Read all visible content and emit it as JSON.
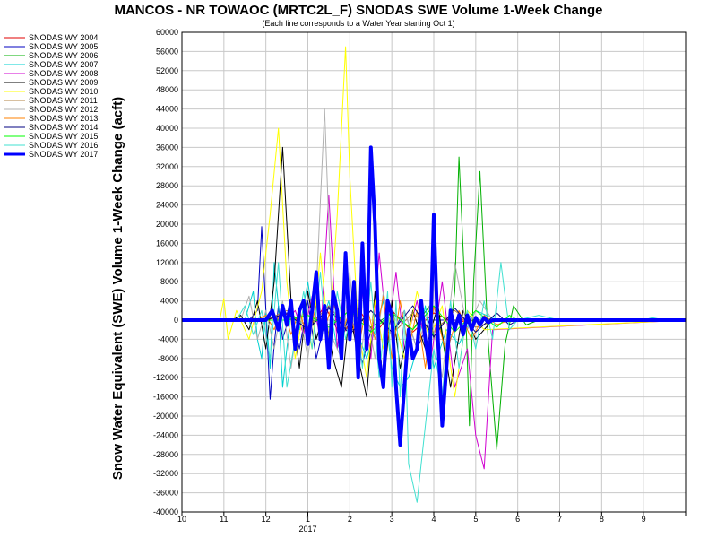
{
  "chart_data": {
    "type": "line",
    "title": "MANCOS - NR TOWAOC (MRTC2L_F) SNODAS SWE Volume 1-Week Change",
    "subtitle": "(Each line corresponds to a Water Year starting Oct 1)",
    "ylabel": "Snow Water Equivalent (SWE) Volume 1-Week Change (acft)",
    "xlabel": "",
    "year_label": "2017",
    "ylim": [
      -40000,
      60000
    ],
    "yticks": [
      60000,
      56000,
      52000,
      48000,
      44000,
      40000,
      36000,
      32000,
      28000,
      24000,
      20000,
      16000,
      12000,
      8000,
      4000,
      0,
      -4000,
      -8000,
      -12000,
      -16000,
      -20000,
      -24000,
      -28000,
      -32000,
      -36000,
      -40000
    ],
    "ytick_labels": [
      "60000",
      "56000",
      "52000",
      "48000",
      "44000",
      "40000",
      "36000",
      "32000",
      "28000",
      "24000",
      "20000",
      "16000",
      "12000",
      "8000",
      "4000",
      "0",
      "-4000",
      "-8000",
      "-12000",
      "-16000",
      "-20000",
      "-24000",
      "-28000",
      "-32000",
      "-36000",
      "-40000"
    ],
    "xlim": [
      0,
      12
    ],
    "xticks": [
      0,
      1,
      2,
      3,
      4,
      5,
      6,
      7,
      8,
      9,
      10,
      11,
      12
    ],
    "xtick_labels": [
      "10",
      "11",
      "12",
      "1",
      "2",
      "3",
      "4",
      "5",
      "6",
      "7",
      "8",
      "9",
      ""
    ],
    "grid": true,
    "legend_position": "left",
    "series": [
      {
        "name": "SNODAS WY 2004",
        "color": "#e00000",
        "width": 1,
        "x": [
          0,
          2.0,
          2.6,
          3.0,
          3.4,
          3.8,
          4.2,
          4.6,
          5.0,
          5.5,
          6.0,
          6.5,
          7.0,
          12
        ],
        "y": [
          0,
          0,
          1500,
          -2500,
          3000,
          -3500,
          2500,
          -3000,
          2000,
          -2500,
          1500,
          -500,
          0,
          0
        ]
      },
      {
        "name": "SNODAS WY 2005",
        "color": "#0000c0",
        "width": 1,
        "x": [
          0,
          1.6,
          1.8,
          1.9,
          2.0,
          2.1,
          2.2,
          2.3,
          2.4,
          2.6,
          2.8,
          3.0,
          3.2,
          3.5,
          3.8,
          4.0,
          4.3,
          4.6,
          5.0,
          5.3,
          5.6,
          5.9,
          6.2,
          12
        ],
        "y": [
          0,
          0,
          2000,
          19500,
          2000,
          -16500,
          -5000,
          3000,
          -4000,
          2000,
          -6000,
          4000,
          -8000,
          3000,
          -5000,
          2000,
          -9000,
          1000,
          -3000,
          2000,
          -6000,
          0,
          0,
          0
        ]
      },
      {
        "name": "SNODAS WY 2006",
        "color": "#00b000",
        "width": 1,
        "x": [
          0,
          2.5,
          3.0,
          3.5,
          4.0,
          4.5,
          5.0,
          5.5,
          5.9,
          6.0,
          6.1,
          6.3,
          6.5,
          6.6,
          6.75,
          6.85,
          6.95,
          7.1,
          7.3,
          7.5,
          7.7,
          7.9,
          8.2,
          8.5,
          12
        ],
        "y": [
          0,
          0,
          1000,
          -1000,
          2000,
          -1500,
          1500,
          -2000,
          3000,
          -4000,
          2000,
          -9000,
          6000,
          34000,
          5000,
          -22000,
          8000,
          31000,
          -5000,
          -27000,
          -5000,
          3000,
          -1000,
          0,
          0
        ]
      },
      {
        "name": "SNODAS WY 2007",
        "color": "#00d0d0",
        "width": 1,
        "x": [
          0,
          1.5,
          1.7,
          1.8,
          1.9,
          2.0,
          2.1,
          2.2,
          2.3,
          2.4,
          2.6,
          2.8,
          3.0,
          3.2,
          3.5,
          3.7,
          4.0,
          4.4,
          4.8,
          5.0,
          5.2,
          5.4,
          5.6,
          5.8,
          6.0,
          6.3,
          6.6,
          7.0,
          7.5,
          12
        ],
        "y": [
          0,
          0,
          6000,
          -4000,
          -8000,
          2000,
          -10000,
          12000,
          3000,
          -14000,
          2000,
          -2000,
          8000,
          -4000,
          4000,
          -6000,
          2000,
          -8000,
          4000,
          -10000,
          -14000,
          -12000,
          -6000,
          3000,
          -10000,
          -2000,
          -5000,
          2000,
          0,
          0
        ]
      },
      {
        "name": "SNODAS WY 2008",
        "color": "#d000d0",
        "width": 1,
        "x": [
          0,
          2.5,
          2.7,
          2.9,
          3.1,
          3.3,
          3.5,
          3.7,
          3.9,
          4.1,
          4.3,
          4.5,
          4.7,
          4.9,
          5.1,
          5.3,
          5.6,
          5.9,
          6.2,
          6.5,
          6.8,
          7.0,
          7.2,
          7.4,
          12
        ],
        "y": [
          0,
          0,
          2000,
          -3000,
          5000,
          -4000,
          26000,
          -6000,
          10000,
          -3000,
          6000,
          -8000,
          14000,
          -4000,
          10000,
          -6000,
          4000,
          -10000,
          8000,
          -14000,
          -6000,
          -24000,
          -31000,
          -2000,
          0
        ]
      },
      {
        "name": "SNODAS WY 2009",
        "color": "#000000",
        "width": 1,
        "x": [
          0,
          1.2,
          1.4,
          1.6,
          1.8,
          2.0,
          2.2,
          2.4,
          2.6,
          2.8,
          3.0,
          3.2,
          3.4,
          3.6,
          3.8,
          4.0,
          4.2,
          4.4,
          4.6,
          4.8,
          5.0,
          5.2,
          5.5,
          5.8,
          6.1,
          6.4,
          6.7,
          7.0,
          7.4,
          12
        ],
        "y": [
          0,
          0,
          1000,
          -2000,
          4000,
          -6000,
          8000,
          36000,
          4000,
          -10000,
          6000,
          -4000,
          2000,
          -8000,
          -14000,
          2000,
          -8000,
          -16000,
          6000,
          -14000,
          4000,
          -10000,
          2000,
          -6000,
          3000,
          -14000,
          2000,
          -4000,
          0,
          0
        ]
      },
      {
        "name": "SNODAS WY 2010",
        "color": "#ffff00",
        "width": 1,
        "x": [
          0,
          0.9,
          1.0,
          1.1,
          1.3,
          1.6,
          1.9,
          2.1,
          2.3,
          2.5,
          2.7,
          2.9,
          3.1,
          3.3,
          3.5,
          3.7,
          3.9,
          4.0,
          4.2,
          4.4,
          4.6,
          4.8,
          5.0,
          5.3,
          5.6,
          5.9,
          6.2,
          6.5,
          6.8,
          7.2,
          12
        ],
        "y": [
          0,
          0,
          4500,
          -4000,
          2000,
          -4000,
          6000,
          22000,
          40000,
          8000,
          -8000,
          2000,
          -6000,
          14000,
          -4000,
          22000,
          57000,
          30000,
          -2000,
          -12000,
          4000,
          -6000,
          2000,
          -8000,
          6000,
          -4000,
          3000,
          -16000,
          2000,
          -2000,
          0
        ]
      },
      {
        "name": "SNODAS WY 2011",
        "color": "#b08040",
        "width": 1,
        "x": [
          0,
          2.0,
          2.5,
          3.0,
          3.5,
          4.0,
          4.5,
          5.0,
          5.5,
          6.0,
          6.5,
          7.0,
          7.5,
          12
        ],
        "y": [
          0,
          0,
          2000,
          -1500,
          3000,
          -2500,
          2000,
          -3000,
          1500,
          -2500,
          2000,
          -1500,
          0,
          0
        ]
      },
      {
        "name": "SNODAS WY 2012",
        "color": "#b0b0b0",
        "width": 1,
        "x": [
          0,
          1.4,
          1.6,
          1.8,
          2.0,
          2.2,
          2.4,
          2.6,
          2.8,
          3.0,
          3.2,
          3.4,
          3.6,
          3.8,
          4.0,
          4.2,
          4.4,
          4.6,
          4.8,
          5.0,
          5.3,
          5.6,
          5.9,
          6.2,
          6.5,
          6.8,
          7.1,
          7.4,
          12
        ],
        "y": [
          0,
          0,
          5000,
          -4000,
          2000,
          -6000,
          4000,
          -10000,
          2000,
          -8000,
          6000,
          44000,
          -4000,
          -8000,
          10000,
          -12000,
          2000,
          -8000,
          6000,
          -4000,
          2000,
          -6000,
          3000,
          -12000,
          12000,
          -2000,
          4000,
          0,
          0
        ]
      },
      {
        "name": "SNODAS WY 2013",
        "color": "#ff8000",
        "width": 1,
        "x": [
          0,
          1.8,
          2.0,
          2.2,
          2.4,
          2.6,
          2.8,
          3.0,
          3.2,
          3.4,
          3.6,
          3.8,
          4.0,
          4.2,
          4.4,
          4.6,
          4.8,
          5.0,
          5.2,
          5.4,
          5.6,
          5.8,
          6.0,
          6.3,
          6.6,
          6.9,
          7.2,
          7.5,
          7.8,
          12
        ],
        "y": [
          0,
          0,
          1000,
          -2000,
          3000,
          -3000,
          2000,
          -4000,
          3000,
          -2000,
          4000,
          -3000,
          2000,
          -6000,
          3000,
          -4000,
          5000,
          -8000,
          4000,
          -6000,
          2000,
          -10000,
          3000,
          -7000,
          2000,
          -4000,
          1000,
          -1000,
          0,
          0
        ]
      },
      {
        "name": "SNODAS WY 2014",
        "color": "#000080",
        "width": 1,
        "x": [
          0,
          2.0,
          2.5,
          3.0,
          3.5,
          4.0,
          4.5,
          5.0,
          5.5,
          6.0,
          6.5,
          7.0,
          7.5,
          7.8,
          8.0,
          12
        ],
        "y": [
          0,
          0,
          1500,
          -2000,
          2500,
          -3000,
          2000,
          -2500,
          3000,
          -3500,
          2500,
          -2500,
          1500,
          -1000,
          0,
          0
        ]
      },
      {
        "name": "SNODAS WY 2015",
        "color": "#00ff00",
        "width": 1,
        "x": [
          0,
          2.5,
          3.0,
          3.5,
          4.0,
          4.5,
          5.0,
          5.5,
          6.0,
          6.5,
          7.0,
          7.5,
          7.8,
          8.0,
          12
        ],
        "y": [
          0,
          0,
          1000,
          -1500,
          2000,
          -2500,
          1500,
          -2000,
          3000,
          -2500,
          2000,
          -1500,
          1000,
          0,
          0
        ]
      },
      {
        "name": "SNODAS WY 2016",
        "color": "#40e0d0",
        "width": 1,
        "x": [
          0,
          1.3,
          1.5,
          1.7,
          1.9,
          2.1,
          2.3,
          2.5,
          2.7,
          2.9,
          3.1,
          3.3,
          3.5,
          3.7,
          3.9,
          4.1,
          4.3,
          4.5,
          4.7,
          4.9,
          5.0,
          5.1,
          5.2,
          5.3,
          5.4,
          5.6,
          5.8,
          6.0,
          6.2,
          6.4,
          6.6,
          6.8,
          7.0,
          7.2,
          7.4,
          7.6,
          7.8,
          8.0,
          8.5,
          9.0,
          9.5,
          10.0,
          11.0,
          11.2,
          11.5,
          12
        ],
        "y": [
          0,
          0,
          3000,
          -3000,
          2000,
          -8000,
          12000,
          -14000,
          -4000,
          6000,
          -6000,
          10000,
          -10000,
          6000,
          -4000,
          4000,
          -10000,
          8000,
          -12000,
          6000,
          -14000,
          4000,
          -16000,
          2000,
          -30000,
          -38000,
          -22000,
          -6000,
          -16000,
          4000,
          -10000,
          2000,
          -6000,
          4000,
          -4000,
          12000,
          -2000,
          0,
          1000,
          0,
          0,
          0,
          0,
          500,
          0,
          0
        ]
      },
      {
        "name": "SNODAS WY 2017",
        "color": "#0000ff",
        "width": 4,
        "x": [
          0,
          2.0,
          2.15,
          2.3,
          2.4,
          2.5,
          2.6,
          2.7,
          2.8,
          2.9,
          3.0,
          3.1,
          3.2,
          3.3,
          3.4,
          3.5,
          3.6,
          3.7,
          3.8,
          3.9,
          4.0,
          4.1,
          4.2,
          4.3,
          4.4,
          4.5,
          4.6,
          4.7,
          4.8,
          4.9,
          5.0,
          5.1,
          5.2,
          5.3,
          5.4,
          5.5,
          5.6,
          5.7,
          5.8,
          5.9,
          6.0,
          6.1,
          6.2,
          6.3,
          6.4,
          6.5,
          6.6,
          6.7,
          6.8,
          6.9,
          7.0,
          7.1,
          7.2,
          7.3,
          7.4,
          7.6,
          7.8,
          8.0,
          8.5,
          12
        ],
        "y": [
          0,
          0,
          2000,
          -2000,
          3000,
          -1000,
          4000,
          -6000,
          2000,
          4000,
          -5000,
          2000,
          10000,
          -4000,
          3000,
          -10000,
          6000,
          2000,
          -8000,
          14000,
          -4000,
          8000,
          -12000,
          16000,
          -6000,
          36000,
          20000,
          -8000,
          -14000,
          4000,
          1000,
          -14000,
          -26000,
          -14000,
          -2000,
          -8000,
          -6000,
          4000,
          -4000,
          -10000,
          22000,
          -4000,
          -22000,
          -10000,
          2000,
          -2000,
          1000,
          -3000,
          1000,
          -2000,
          500,
          -1000,
          500,
          -500,
          0,
          0,
          0,
          0,
          0,
          0
        ]
      }
    ]
  }
}
